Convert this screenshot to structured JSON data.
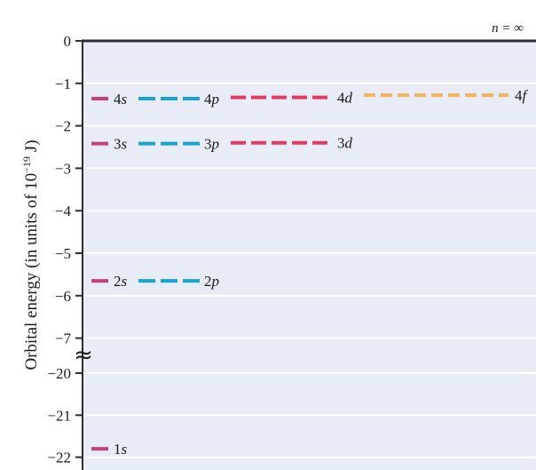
{
  "title": "",
  "axis": {
    "title_main": "Orbital energy (in units of 10",
    "title_exp": "−19",
    "title_tail": " J)",
    "upper_ticks": [
      "0",
      "−1",
      "−2",
      "−3",
      "−4",
      "−5",
      "−6",
      "−7"
    ],
    "lower_ticks": [
      "−20",
      "−21",
      "−22"
    ],
    "break_symbol": "≈"
  },
  "n_infinity_label": "n = ∞",
  "colors": {
    "s": "#c2407e",
    "p": "#1aa3cf",
    "d": "#e23a62",
    "f": "#f5b35a",
    "panel": "#e7ecf6",
    "gridline": "#ffffff",
    "axis": "#2b2b3a"
  },
  "chart_data": {
    "type": "energy-level diagram",
    "ylabel": "Orbital energy (in units of 10−19 J)",
    "axis_break": {
      "from": -7,
      "to": -20
    },
    "limit_line": {
      "label": "n = ∞",
      "energy": 0
    },
    "levels": [
      {
        "id": "1s",
        "n": "1",
        "l": "s",
        "energy": -21.8
      },
      {
        "id": "2s",
        "n": "2",
        "l": "s",
        "energy": -5.65
      },
      {
        "id": "2p",
        "n": "2",
        "l": "p",
        "energy": -5.65
      },
      {
        "id": "3s",
        "n": "3",
        "l": "s",
        "energy": -2.42
      },
      {
        "id": "3p",
        "n": "3",
        "l": "p",
        "energy": -2.42
      },
      {
        "id": "3d",
        "n": "3",
        "l": "d",
        "energy": -2.4
      },
      {
        "id": "4s",
        "n": "4",
        "l": "s",
        "energy": -1.36
      },
      {
        "id": "4p",
        "n": "4",
        "l": "p",
        "energy": -1.36
      },
      {
        "id": "4d",
        "n": "4",
        "l": "d",
        "energy": -1.33
      },
      {
        "id": "4f",
        "n": "4",
        "l": "f",
        "energy": -1.28
      }
    ]
  }
}
